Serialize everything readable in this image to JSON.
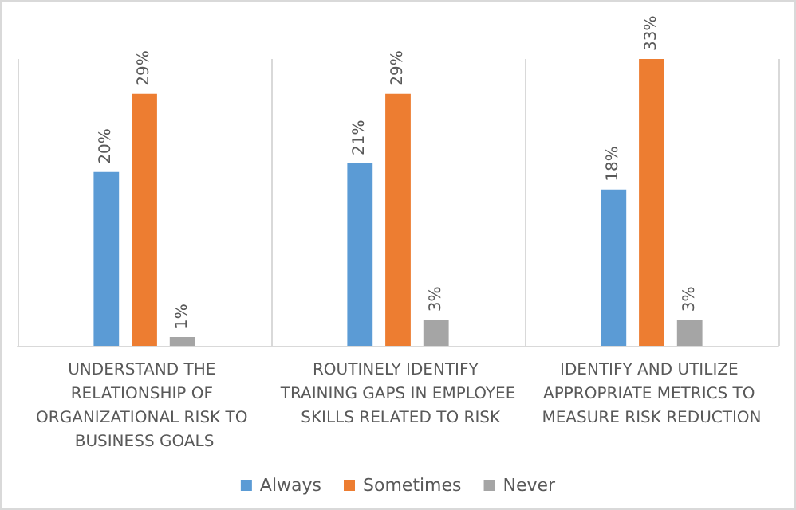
{
  "chart_data": {
    "type": "bar",
    "categories": [
      "UNDERSTAND THE RELATIONSHIP OF ORGANIZATIONAL RISK TO BUSINESS GOALS",
      "ROUTINELY IDENTIFY TRAINING GAPS IN EMPLOYEE SKILLS RELATED TO RISK",
      "IDENTIFY AND UTILIZE APPROPRIATE METRICS TO MEASURE RISK REDUCTION"
    ],
    "series": [
      {
        "name": "Always",
        "color": "#5b9bd5",
        "values": [
          20,
          21,
          18
        ],
        "value_labels": [
          "20%",
          "21%",
          "18%"
        ]
      },
      {
        "name": "Sometimes",
        "color": "#ed7d31",
        "values": [
          29,
          29,
          33
        ],
        "value_labels": [
          "29%",
          "29%",
          "33%"
        ]
      },
      {
        "name": "Never",
        "color": "#a5a5a5",
        "values": [
          1,
          3,
          3
        ],
        "value_labels": [
          "1%",
          "3%",
          "3%"
        ]
      }
    ],
    "grid": "x",
    "legend": "bottom"
  }
}
